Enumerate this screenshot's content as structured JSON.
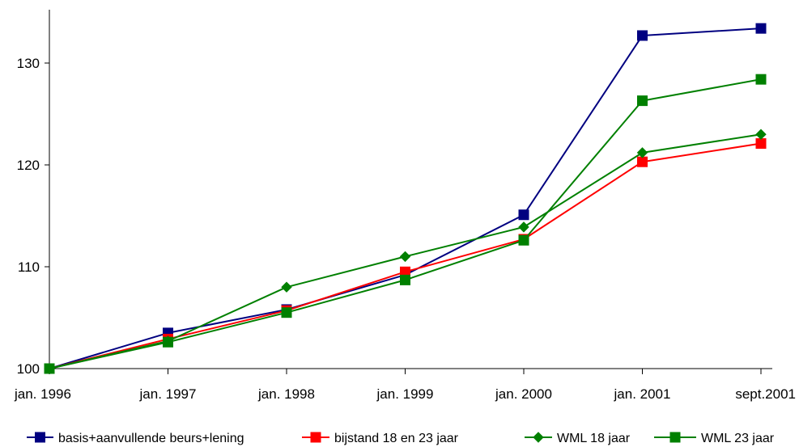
{
  "chart_data": {
    "type": "line",
    "categories": [
      "jan. 1996",
      "jan. 1997",
      "jan. 1998",
      "jan. 1999",
      "jan. 2000",
      "jan. 2001",
      "sept.2001"
    ],
    "ylim": [
      100,
      135
    ],
    "yticks": [
      100,
      110,
      120,
      130
    ],
    "grid": false,
    "legend_position": "bottom",
    "series": [
      {
        "name": "basis+aanvullende beurs+lening",
        "color": "#000080",
        "marker": "square",
        "values": [
          100,
          103.5,
          105.8,
          109.2,
          115.1,
          132.7,
          133.4
        ]
      },
      {
        "name": "bijstand 18 en 23 jaar",
        "color": "#FF0000",
        "marker": "square",
        "values": [
          100,
          102.9,
          105.7,
          109.5,
          112.7,
          120.3,
          122.1
        ]
      },
      {
        "name": "WML 18 jaar",
        "color": "#008000",
        "marker": "diamond",
        "values": [
          100,
          102.7,
          108.0,
          111.0,
          113.9,
          121.2,
          123.0
        ]
      },
      {
        "name": "WML 23 jaar",
        "color": "#008000",
        "marker": "square",
        "values": [
          100,
          102.6,
          105.5,
          108.7,
          112.6,
          126.3,
          128.4
        ]
      }
    ]
  }
}
